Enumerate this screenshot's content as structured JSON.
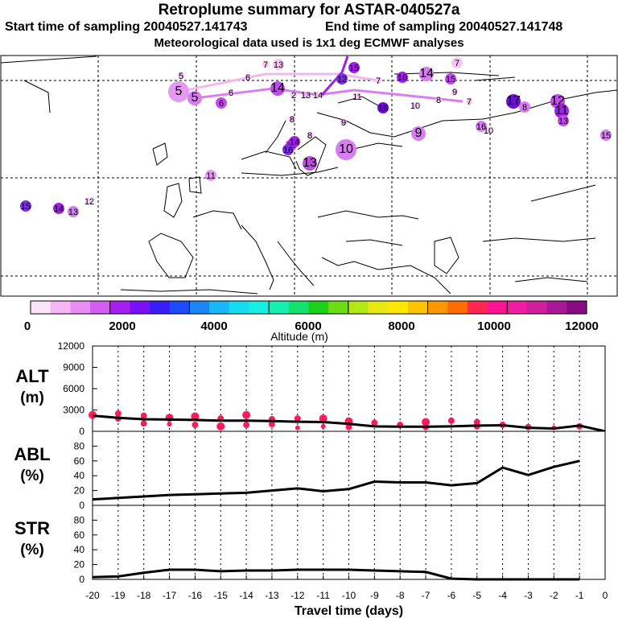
{
  "header": {
    "title": "Retroplume summary for ASTAR-040527a",
    "start_label": "Start time of sampling 20040527.141743",
    "end_label": "End time of sampling 20040527.141748",
    "meteo": "Meteorological data used is 1x1 deg ECMWF analyses"
  },
  "map": {
    "labels": [
      {
        "t": "5",
        "c": "#f9c6f4",
        "s": 0
      },
      {
        "t": "6",
        "c": "#f9c6f4",
        "s": 0
      },
      {
        "t": "13",
        "c": "#f9c6f4",
        "s": 1
      },
      {
        "t": "15",
        "c": "#a020e8",
        "s": 1
      },
      {
        "t": "7",
        "c": "#f9c6f4",
        "s": 1
      },
      {
        "t": "5",
        "c": "#e39af0",
        "s": 3
      },
      {
        "t": "5",
        "c": "#d97ef0",
        "s": 2
      },
      {
        "t": "6",
        "c": "#f3b5f3",
        "s": 0
      },
      {
        "t": "6",
        "c": "#c24ce8",
        "s": 1
      },
      {
        "t": "7",
        "c": "#f9c6f4",
        "s": 0
      },
      {
        "t": "14",
        "c": "#c24ce8",
        "s": 2
      },
      {
        "t": "2",
        "c": "#f9c6f4",
        "s": 0
      },
      {
        "t": "13",
        "c": "#f3b5f3",
        "s": 0
      },
      {
        "t": "14",
        "c": "#f9c6f4",
        "s": 0
      },
      {
        "t": "12",
        "c": "#7a30e0",
        "s": 1
      },
      {
        "t": "11",
        "c": "#f9c6f4",
        "s": 0
      },
      {
        "t": "7",
        "c": "#f9c6f4",
        "s": 0
      },
      {
        "t": "16",
        "c": "#a020e8",
        "s": 1
      },
      {
        "t": "14",
        "c": "#d97ef0",
        "s": 2
      },
      {
        "t": "15",
        "c": "#c24ce8",
        "s": 1
      },
      {
        "t": "7",
        "c": "#f9c6f4",
        "s": 0
      },
      {
        "t": "16",
        "c": "#6a10d0",
        "s": 1
      },
      {
        "t": "10",
        "c": "#f9c6f4",
        "s": 0
      },
      {
        "t": "8",
        "c": "#f9c6f4",
        "s": 0
      },
      {
        "t": "9",
        "c": "#f9c6f4",
        "s": 0
      },
      {
        "t": "17",
        "c": "#6a10d0",
        "s": 2
      },
      {
        "t": "8",
        "c": "#d97ef0",
        "s": 1
      },
      {
        "t": "12",
        "c": "#c24ce8",
        "s": 2
      },
      {
        "t": "11",
        "c": "#a020e8",
        "s": 2
      },
      {
        "t": "13",
        "c": "#c24ce8",
        "s": 1
      },
      {
        "t": "15",
        "c": "#d97ef0",
        "s": 1
      },
      {
        "t": "16",
        "c": "#d97ef0",
        "s": 1
      },
      {
        "t": "10",
        "c": "#f9c6f4",
        "s": 0
      },
      {
        "t": "8",
        "c": "#f3b5f3",
        "s": 0
      },
      {
        "t": "9",
        "c": "#f3b5f3",
        "s": 0
      },
      {
        "t": "9",
        "c": "#e39af0",
        "s": 1
      },
      {
        "t": "9",
        "c": "#d97ef0",
        "s": 2
      },
      {
        "t": "8",
        "c": "#f9c6f4",
        "s": 0
      },
      {
        "t": "15",
        "c": "#c24ce8",
        "s": 1
      },
      {
        "t": "16",
        "c": "#7a30e0",
        "s": 1
      },
      {
        "t": "14",
        "c": "#a020e8",
        "s": 1
      },
      {
        "t": "13",
        "c": "#c24ce8",
        "s": 2
      },
      {
        "t": "10",
        "c": "#d97ef0",
        "s": 3
      },
      {
        "t": "11",
        "c": "#e39af0",
        "s": 1
      },
      {
        "t": "15",
        "c": "#7a30e0",
        "s": 1
      },
      {
        "t": "14",
        "c": "#a020e8",
        "s": 1
      },
      {
        "t": "13",
        "c": "#d97ef0",
        "s": 1
      },
      {
        "t": "12",
        "c": "#f9c6f4",
        "s": 0
      }
    ]
  },
  "colorbar": {
    "colors": [
      "#fbe3fb",
      "#f6b8f5",
      "#e98ef2",
      "#d35ef0",
      "#a41ff0",
      "#7a10f5",
      "#3a1df5",
      "#1d4cf5",
      "#1a86f5",
      "#1ab7f5",
      "#16dcf0",
      "#16f0e0",
      "#16f0b0",
      "#16e070",
      "#1cd01c",
      "#6cdc14",
      "#b4e814",
      "#e8e814",
      "#ffe800",
      "#ffc400",
      "#ff9800",
      "#ff6c00",
      "#ff2850",
      "#ff1490",
      "#f01ea0",
      "#d01e9c",
      "#a81894",
      "#8a0a84"
    ],
    "ticks": [
      "0",
      "2000",
      "4000",
      "6000",
      "8000",
      "10000",
      "12000"
    ],
    "label": "Altitude (m)"
  },
  "chart_data": [
    {
      "type": "line",
      "name": "ALT",
      "title": "ALT",
      "unit": "(m)",
      "ylim": [
        0,
        12000
      ],
      "yticks": [
        "12000",
        "9000",
        "6000",
        "3000",
        "0"
      ],
      "x": [
        -20,
        -19,
        -18,
        -17,
        -16,
        -15,
        -14,
        -13,
        -12,
        -11,
        -10,
        -9,
        -8,
        -7,
        -6,
        -5,
        -4,
        -3,
        -2,
        -1,
        0
      ],
      "y": [
        2200,
        1900,
        1700,
        1650,
        1600,
        1500,
        1500,
        1450,
        1350,
        1300,
        1050,
        700,
        650,
        650,
        700,
        800,
        850,
        500,
        400,
        800,
        0
      ],
      "points": [
        {
          "x": -20,
          "y": 2300,
          "r": 5
        },
        {
          "x": -19,
          "y": 2500,
          "r": 4
        },
        {
          "x": -19,
          "y": 1800,
          "r": 4
        },
        {
          "x": -18,
          "y": 2200,
          "r": 4
        },
        {
          "x": -18,
          "y": 1100,
          "r": 4
        },
        {
          "x": -17,
          "y": 1900,
          "r": 5
        },
        {
          "x": -17,
          "y": 1000,
          "r": 3
        },
        {
          "x": -16,
          "y": 2100,
          "r": 5
        },
        {
          "x": -16,
          "y": 900,
          "r": 4
        },
        {
          "x": -15,
          "y": 1800,
          "r": 4
        },
        {
          "x": -15,
          "y": 700,
          "r": 5
        },
        {
          "x": -14,
          "y": 2300,
          "r": 5
        },
        {
          "x": -14,
          "y": 900,
          "r": 4
        },
        {
          "x": -13,
          "y": 1700,
          "r": 4
        },
        {
          "x": -13,
          "y": 1000,
          "r": 4
        },
        {
          "x": -12,
          "y": 1800,
          "r": 4
        },
        {
          "x": -12,
          "y": 500,
          "r": 3
        },
        {
          "x": -11,
          "y": 1800,
          "r": 5
        },
        {
          "x": -11,
          "y": 700,
          "r": 3
        },
        {
          "x": -10,
          "y": 1400,
          "r": 5
        },
        {
          "x": -10,
          "y": 600,
          "r": 4
        },
        {
          "x": -9,
          "y": 1200,
          "r": 4
        },
        {
          "x": -8,
          "y": 900,
          "r": 4
        },
        {
          "x": -7,
          "y": 1300,
          "r": 5
        },
        {
          "x": -7,
          "y": 600,
          "r": 4
        },
        {
          "x": -6,
          "y": 1500,
          "r": 4
        },
        {
          "x": -5,
          "y": 1300,
          "r": 4
        },
        {
          "x": -5,
          "y": 700,
          "r": 4
        },
        {
          "x": -4,
          "y": 900,
          "r": 4
        },
        {
          "x": -3,
          "y": 600,
          "r": 4
        },
        {
          "x": -2,
          "y": 500,
          "r": 3
        },
        {
          "x": -1,
          "y": 700,
          "r": 4
        }
      ]
    },
    {
      "type": "line",
      "name": "ABL",
      "title": "ABL",
      "unit": "(%)",
      "ylim": [
        0,
        100
      ],
      "yticks": [
        "80",
        "60",
        "40",
        "20",
        "0"
      ],
      "x": [
        -20,
        -19,
        -18,
        -17,
        -16,
        -15,
        -14,
        -13,
        -12,
        -11,
        -10,
        -9,
        -8,
        -7,
        -6,
        -5,
        -4,
        -3,
        -2,
        -1
      ],
      "y": [
        8,
        10,
        12,
        14,
        15,
        16,
        17,
        20,
        23,
        19,
        22,
        32,
        31,
        31,
        27,
        30,
        51,
        41,
        52,
        60
      ]
    },
    {
      "type": "line",
      "name": "STR",
      "title": "STR",
      "unit": "(%)",
      "ylim": [
        0,
        100
      ],
      "yticks": [
        "80",
        "60",
        "40",
        "20",
        "0"
      ],
      "x": [
        -20,
        -19,
        -18,
        -17,
        -16,
        -15,
        -14,
        -13,
        -12,
        -11,
        -10,
        -9,
        -8,
        -7,
        -6,
        -5,
        -4,
        -3,
        -2,
        -1
      ],
      "y": [
        3,
        4,
        9,
        13,
        13,
        11,
        12,
        12,
        13,
        13,
        13,
        12,
        11,
        10,
        1,
        0,
        0,
        0,
        0,
        0
      ],
      "xticks": [
        "-20",
        "-19",
        "-18",
        "-17",
        "-16",
        "-15",
        "-14",
        "-13",
        "-12",
        "-11",
        "-10",
        "-9",
        "-8",
        "-7",
        "-6",
        "-5",
        "-4",
        "-3",
        "-2",
        "-1",
        "0"
      ],
      "xlabel": "Travel time (days)"
    }
  ]
}
